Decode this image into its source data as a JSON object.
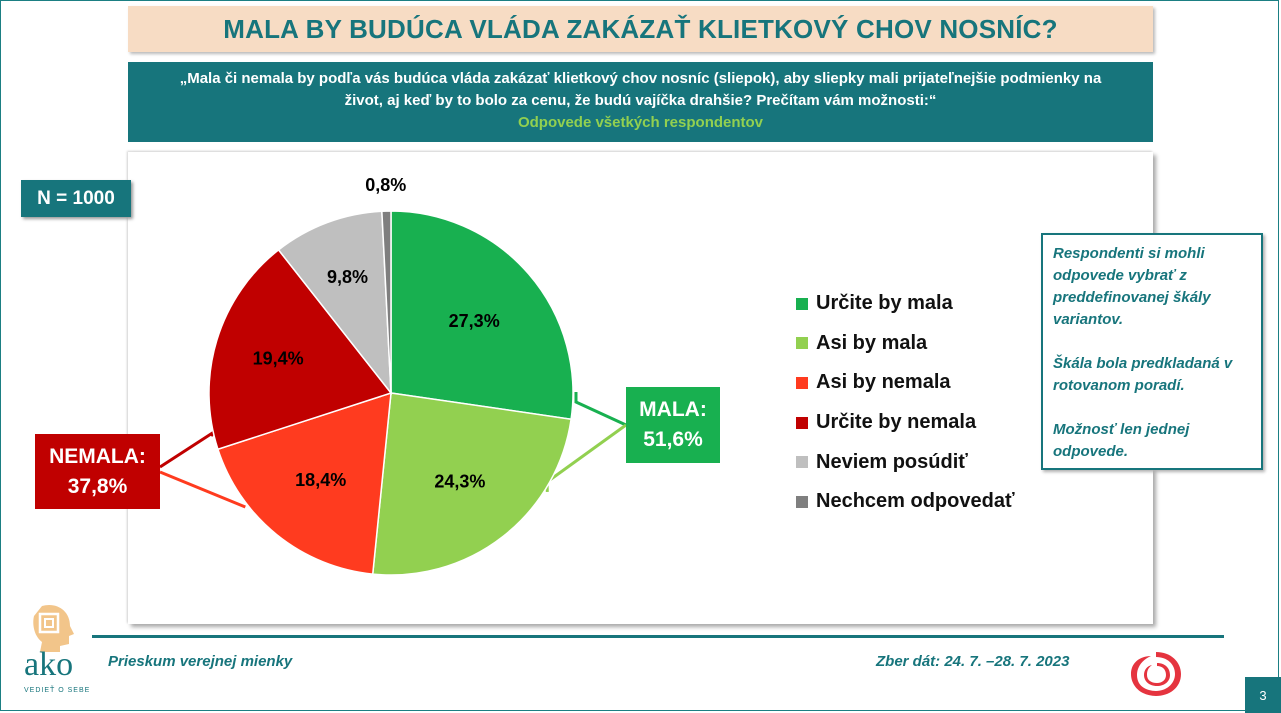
{
  "title": "MALA BY BUDÚCA VLÁDA ZAKÁZAŤ KLIETKOVÝ CHOV NOSNÍC?",
  "question": {
    "line1": "„Mala či nemala by podľa vás budúca vláda zakázať klietkový chov nosníc (sliepok), aby sliepky mali prijateľnejšie podmienky na",
    "line2": "život, aj keď by to bolo za cenu, že budú vajíčka drahšie? Prečítam vám možnosti:“",
    "subtitle": "Odpovede všetkých respondentov"
  },
  "sample": "N = 1000",
  "groups": {
    "mala": {
      "label": "MALA:",
      "value": "51,6%"
    },
    "nemala": {
      "label": "NEMALA:",
      "value": "37,8%"
    }
  },
  "note": {
    "p1": "Respondenti si mohli odpovede vybrať z preddefinovanej škály variantov.",
    "p2": "Škála bola predkladaná v rotovanom poradí.",
    "p3": "Možnosť len jednej odpovede."
  },
  "footer": {
    "left": "Prieskum verejnej mienky",
    "right": "Zber dát: 24. 7. –28. 7. 2023",
    "page": "3",
    "logo_text": "ako",
    "logo_tagline": "VEDIEŤ O SEBE"
  },
  "icons": [
    "ako-head-logo-icon",
    "swirl-logo-icon"
  ],
  "colors": {
    "accent": "#17757c",
    "urcite_mala": "#18b050",
    "asi_mala": "#92d050",
    "asi_nemala": "#ff3b1f",
    "urcite_nemala": "#c00000",
    "neviem": "#bfbfbf",
    "nechcem": "#7f7f7f"
  },
  "chart_data": {
    "type": "pie",
    "categories": [
      "Určite by mala",
      "Asi by mala",
      "Asi by nemala",
      "Určite by nemala",
      "Neviem posúdiť",
      "Nechcem odpovedať"
    ],
    "values": [
      27.3,
      24.3,
      18.4,
      19.4,
      9.8,
      0.8
    ],
    "labels": [
      "27,3%",
      "24,3%",
      "18,4%",
      "19,4%",
      "9,8%",
      "0,8%"
    ],
    "colors": [
      "#18b050",
      "#92d050",
      "#ff3b1f",
      "#c00000",
      "#bfbfbf",
      "#7f7f7f"
    ],
    "legend_position": "right"
  }
}
